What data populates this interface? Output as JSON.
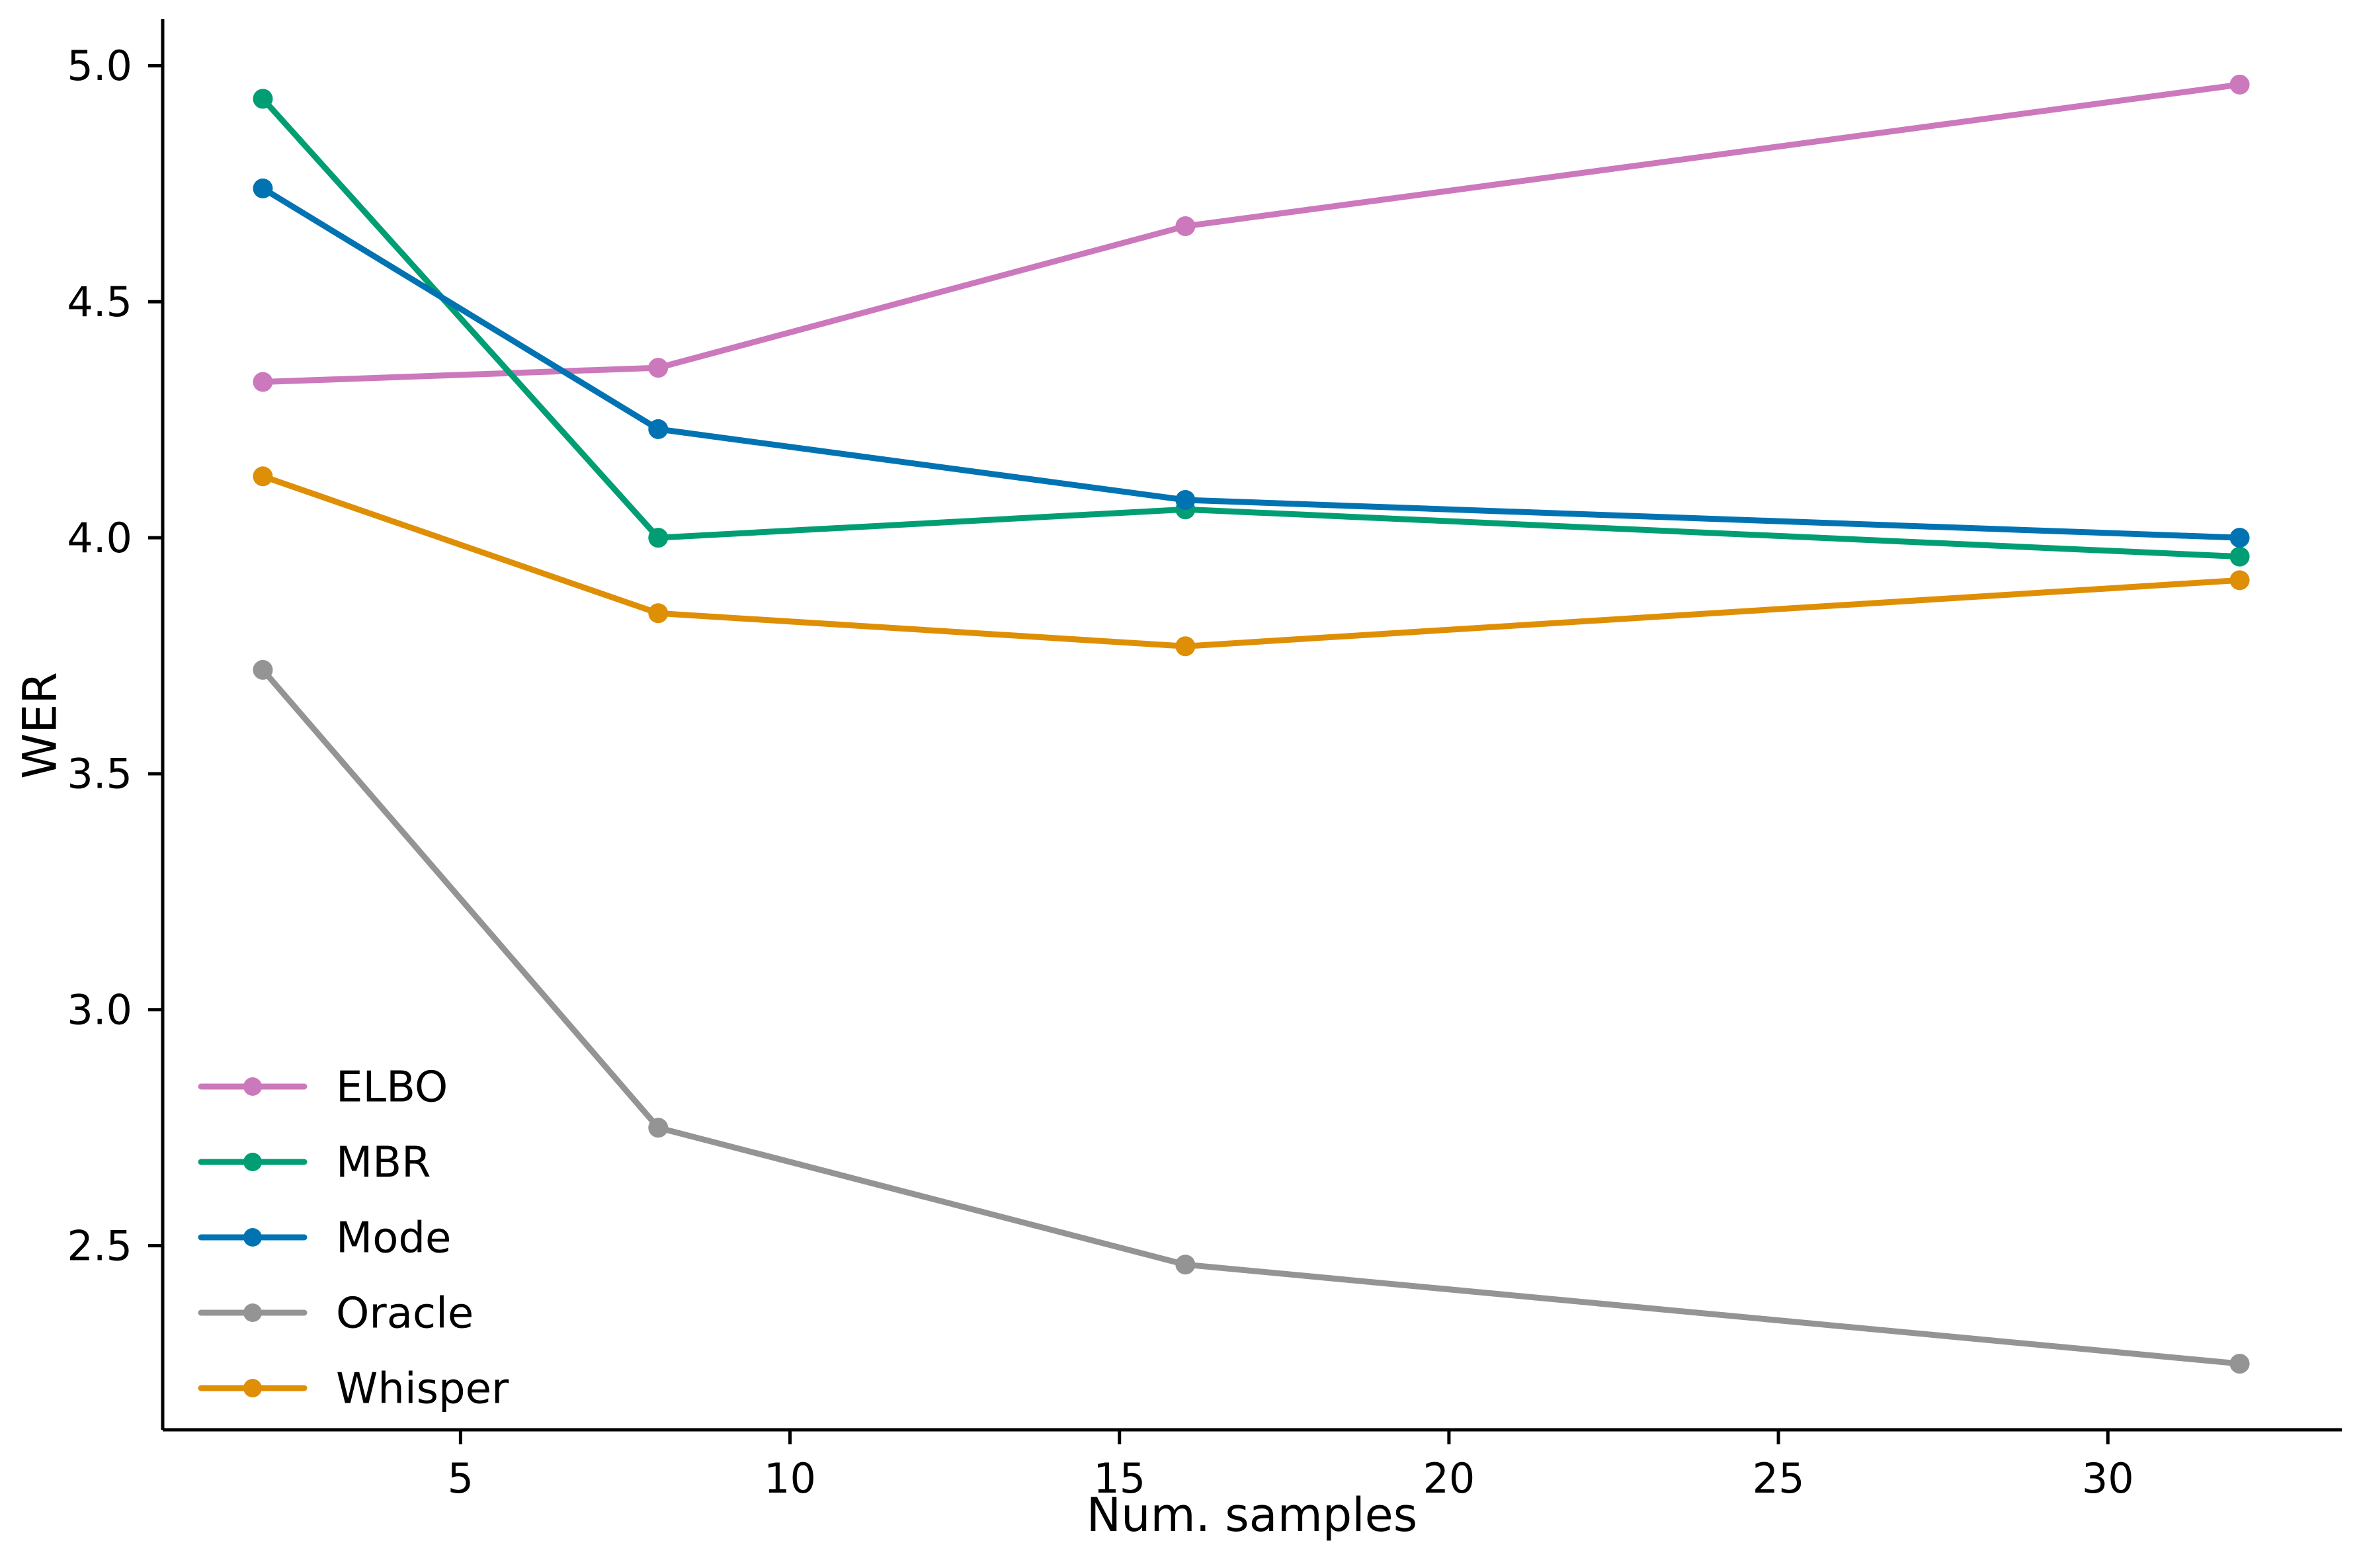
{
  "chart_data": {
    "type": "line",
    "title": "",
    "xlabel": "Num. samples",
    "ylabel": "WER",
    "x": [
      2,
      8,
      16,
      32
    ],
    "series": [
      {
        "name": "ELBO",
        "color": "#cc78bc",
        "values": [
          4.33,
          4.36,
          4.66,
          4.96
        ]
      },
      {
        "name": "MBR",
        "color": "#029e73",
        "values": [
          4.93,
          4.0,
          4.06,
          3.96
        ]
      },
      {
        "name": "Mode",
        "color": "#0173b2",
        "values": [
          4.74,
          4.23,
          4.08,
          4.0
        ]
      },
      {
        "name": "Oracle",
        "color": "#949494",
        "values": [
          3.72,
          2.75,
          2.46,
          2.25
        ]
      },
      {
        "name": "Whisper",
        "color": "#de8f05",
        "values": [
          4.13,
          3.84,
          3.77,
          3.91
        ]
      }
    ],
    "x_ticks": [
      5,
      10,
      15,
      20,
      25,
      30
    ],
    "y_ticks": [
      5.0,
      4.5,
      4.0,
      3.5,
      3.0,
      2.5
    ],
    "xlim": [
      0.48,
      33.55
    ],
    "ylim": [
      2.11,
      5.1
    ],
    "legend_position": "lower left",
    "legend_entries": [
      "ELBO",
      "MBR",
      "Mode",
      "Oracle",
      "Whisper"
    ],
    "grid": false,
    "marker": "circle",
    "line_width": 9,
    "marker_radius": 15,
    "axis_color": "#000000",
    "background": "#ffffff"
  }
}
